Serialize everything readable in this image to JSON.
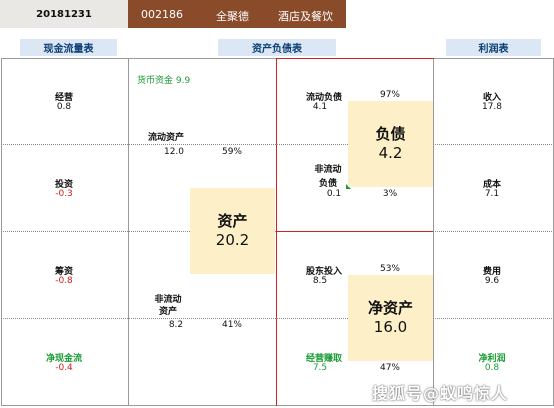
{
  "header": {
    "date": "20181231",
    "code": "002186",
    "name": "全聚德",
    "industry": "酒店及餐饮"
  },
  "sections": {
    "cash_flow": "现金流量表",
    "balance_sheet": "资产负债表",
    "income": "利润表"
  },
  "cash_flow": {
    "operating_label": "经营",
    "operating_value": "0.8",
    "investing_label": "投资",
    "investing_value": "-0.3",
    "financing_label": "筹资",
    "financing_value": "-0.8",
    "net_label": "净现金流",
    "net_value": "-0.4"
  },
  "assets": {
    "monetary_funds": "货币资金 9.9",
    "current_label": "流动资产",
    "current_value": "12.0",
    "current_pct": "59%",
    "noncurrent_label1": "非流动",
    "noncurrent_label2": "资产",
    "noncurrent_value": "8.2",
    "noncurrent_pct": "41%",
    "total_label": "资产",
    "total_value": "20.2"
  },
  "liabilities": {
    "current_label": "流动负债",
    "current_value": "4.1",
    "current_pct": "97%",
    "noncurrent_label1": "非流动",
    "noncurrent_label2": "负债",
    "noncurrent_value": "0.1",
    "noncurrent_pct": "3%",
    "total_label": "负债",
    "total_value": "4.2"
  },
  "equity": {
    "shareholder_label": "股东投入",
    "shareholder_value": "8.5",
    "shareholder_pct": "53%",
    "earned_label": "经营赚取",
    "earned_value": "7.5",
    "earned_pct": "47%",
    "total_label": "净资产",
    "total_value": "16.0"
  },
  "income": {
    "revenue_label": "收入",
    "revenue_value": "17.8",
    "cost_label": "成本",
    "cost_value": "7.1",
    "expense_label": "费用",
    "expense_value": "9.6",
    "net_label": "净利润",
    "net_value": "0.8"
  },
  "watermark": "搜狐号@蚁鸣惊人"
}
